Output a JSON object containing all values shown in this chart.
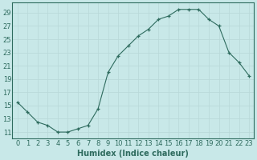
{
  "x": [
    0,
    1,
    2,
    3,
    4,
    5,
    6,
    7,
    8,
    9,
    10,
    11,
    12,
    13,
    14,
    15,
    16,
    17,
    18,
    19,
    20,
    21,
    22,
    23
  ],
  "y": [
    15.5,
    14.0,
    12.5,
    12.0,
    11.0,
    11.0,
    11.5,
    12.0,
    14.5,
    20.0,
    22.5,
    24.0,
    25.5,
    26.5,
    28.0,
    28.5,
    29.5,
    29.5,
    29.5,
    28.0,
    27.0,
    23.0,
    21.5,
    19.5
  ],
  "xlabel": "Humidex (Indice chaleur)",
  "ylabel": "",
  "xlim": [
    -0.5,
    23.5
  ],
  "ylim": [
    10.0,
    30.5
  ],
  "yticks": [
    11,
    13,
    15,
    17,
    19,
    21,
    23,
    25,
    27,
    29
  ],
  "xticks": [
    0,
    1,
    2,
    3,
    4,
    5,
    6,
    7,
    8,
    9,
    10,
    11,
    12,
    13,
    14,
    15,
    16,
    17,
    18,
    19,
    20,
    21,
    22,
    23
  ],
  "line_color": "#2e6b5e",
  "bg_color": "#c8e8e8",
  "grid_color": "#b8d8d8",
  "label_fontsize": 7,
  "tick_fontsize": 6
}
